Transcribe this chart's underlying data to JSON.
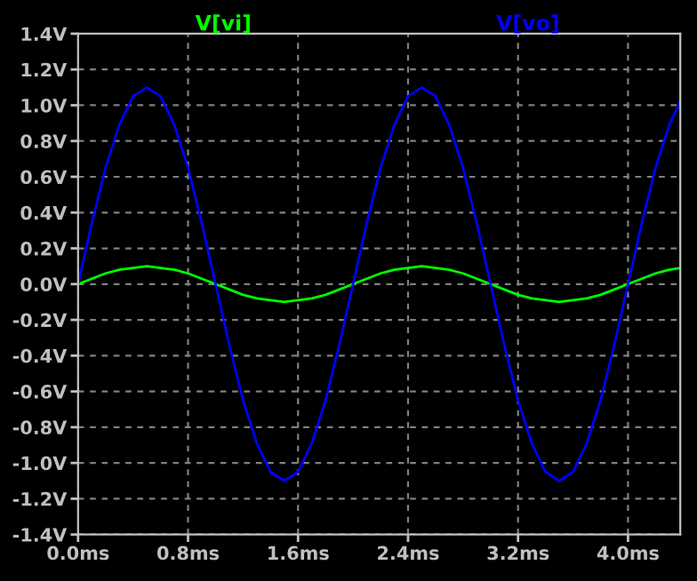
{
  "chart_data": {
    "type": "line",
    "x": [
      0,
      0.1,
      0.2,
      0.3,
      0.4,
      0.5,
      0.6,
      0.7,
      0.8,
      0.9,
      1.0,
      1.1,
      1.2,
      1.3,
      1.4,
      1.5,
      1.6,
      1.7,
      1.8,
      1.9,
      2.0,
      2.1,
      2.2,
      2.3,
      2.4,
      2.5,
      2.6,
      2.7,
      2.8,
      2.9,
      3.0,
      3.1,
      3.2,
      3.3,
      3.4,
      3.5,
      3.6,
      3.7,
      3.8,
      3.9,
      4.0,
      4.1,
      4.2,
      4.3,
      4.38
    ],
    "series": [
      {
        "name": "V[vi]",
        "color": "#00ff00",
        "values": [
          0,
          0.03,
          0.06,
          0.08,
          0.09,
          0.1,
          0.09,
          0.08,
          0.06,
          0.03,
          0,
          -0.03,
          -0.06,
          -0.08,
          -0.09,
          -0.1,
          -0.09,
          -0.08,
          -0.06,
          -0.03,
          0,
          0.03,
          0.06,
          0.08,
          0.09,
          0.1,
          0.09,
          0.08,
          0.06,
          0.03,
          0,
          -0.03,
          -0.06,
          -0.08,
          -0.09,
          -0.1,
          -0.09,
          -0.08,
          -0.06,
          -0.03,
          0,
          0.03,
          0.06,
          0.08,
          0.09
        ]
      },
      {
        "name": "V[vo]",
        "color": "#0000ff",
        "values": [
          0,
          0.34,
          0.65,
          0.89,
          1.05,
          1.1,
          1.05,
          0.89,
          0.65,
          0.34,
          0,
          -0.34,
          -0.65,
          -0.89,
          -1.05,
          -1.1,
          -1.05,
          -0.89,
          -0.65,
          -0.34,
          0,
          0.34,
          0.65,
          0.89,
          1.05,
          1.1,
          1.05,
          0.89,
          0.65,
          0.34,
          0,
          -0.34,
          -0.65,
          -0.89,
          -1.05,
          -1.1,
          -1.05,
          -0.89,
          -0.65,
          -0.34,
          0,
          0.34,
          0.65,
          0.89,
          1.02
        ]
      }
    ],
    "xlim": [
      0,
      4.38
    ],
    "xticks": [
      {
        "value": 0,
        "label": "0.0ms"
      },
      {
        "value": 0.8,
        "label": "0.8ms"
      },
      {
        "value": 1.6,
        "label": "1.6ms"
      },
      {
        "value": 2.4,
        "label": "2.4ms"
      },
      {
        "value": 3.2,
        "label": "3.2ms"
      },
      {
        "value": 4.0,
        "label": "4.0ms"
      }
    ],
    "ylim": [
      -1.4,
      1.4
    ],
    "yticks": [
      {
        "value": -1.4,
        "label": "-1.4V"
      },
      {
        "value": -1.2,
        "label": "-1.2V"
      },
      {
        "value": -1.0,
        "label": "-1.0V"
      },
      {
        "value": -0.8,
        "label": "-0.8V"
      },
      {
        "value": -0.6,
        "label": "-0.6V"
      },
      {
        "value": -0.4,
        "label": "-0.4V"
      },
      {
        "value": -0.2,
        "label": "-0.2V"
      },
      {
        "value": 0.0,
        "label": "0.0V"
      },
      {
        "value": 0.2,
        "label": "0.2V"
      },
      {
        "value": 0.4,
        "label": "0.4V"
      },
      {
        "value": 0.6,
        "label": "0.6V"
      },
      {
        "value": 0.8,
        "label": "0.8V"
      },
      {
        "value": 1.0,
        "label": "1.0V"
      },
      {
        "value": 1.2,
        "label": "1.2V"
      },
      {
        "value": 1.4,
        "label": "1.4V"
      }
    ],
    "grid": true,
    "line_style": "solid",
    "marker": "none"
  }
}
